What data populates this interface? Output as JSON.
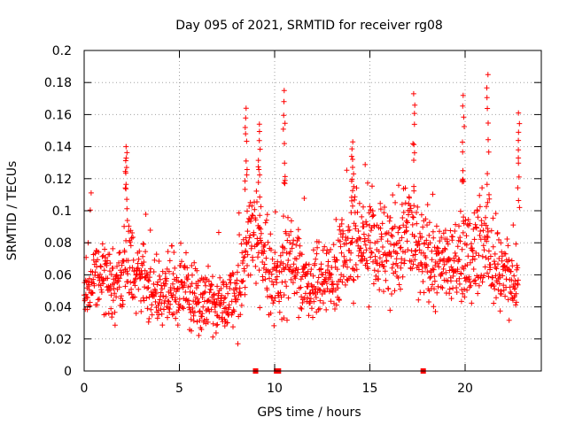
{
  "chart_data": {
    "type": "scatter",
    "title": "Day 095 of 2021, SRMTID for receiver rg08",
    "xlabel": "GPS time / hours",
    "ylabel": "SRMTID / TECUs",
    "xlim": [
      0,
      24
    ],
    "ylim": [
      0,
      0.2
    ],
    "x_ticks": [
      0,
      5,
      10,
      15,
      20
    ],
    "x_tick_labels": [
      "0",
      "5",
      "10",
      "15",
      "20"
    ],
    "y_ticks": [
      0,
      0.02,
      0.04,
      0.06,
      0.08,
      0.1,
      0.12,
      0.14,
      0.16,
      0.18,
      0.2
    ],
    "y_tick_labels": [
      "0",
      "0.02",
      "0.04",
      "0.06",
      "0.08",
      "0.1",
      "0.12",
      "0.14",
      "0.16",
      "0.18",
      "0.2"
    ],
    "grid": true,
    "marker": "+",
    "color": "#ff0000",
    "series": [
      {
        "name": "SRMTID",
        "profile_x": [
          0,
          0.5,
          1,
          1.5,
          2,
          2.2,
          2.5,
          3,
          3.5,
          4,
          4.5,
          5,
          5.5,
          6,
          6.5,
          7,
          7.5,
          8,
          8.3,
          8.6,
          9,
          9.5,
          10,
          10.3,
          10.6,
          11,
          11.5,
          12,
          12.5,
          13,
          13.5,
          14,
          14.5,
          15,
          15.5,
          16,
          16.5,
          17,
          17.5,
          18,
          18.5,
          19,
          19.5,
          20,
          20.5,
          21,
          21.5,
          22,
          22.5,
          22.8
        ],
        "profile_mean": [
          0.05,
          0.055,
          0.06,
          0.052,
          0.06,
          0.07,
          0.065,
          0.058,
          0.05,
          0.048,
          0.05,
          0.052,
          0.048,
          0.045,
          0.045,
          0.042,
          0.04,
          0.045,
          0.06,
          0.08,
          0.085,
          0.07,
          0.055,
          0.06,
          0.07,
          0.065,
          0.055,
          0.05,
          0.055,
          0.06,
          0.07,
          0.08,
          0.078,
          0.08,
          0.07,
          0.075,
          0.08,
          0.085,
          0.075,
          0.07,
          0.068,
          0.07,
          0.068,
          0.075,
          0.075,
          0.08,
          0.065,
          0.06,
          0.055,
          0.06
        ],
        "profile_spread": [
          0.018,
          0.018,
          0.02,
          0.018,
          0.02,
          0.03,
          0.022,
          0.02,
          0.018,
          0.018,
          0.02,
          0.02,
          0.018,
          0.018,
          0.018,
          0.015,
          0.015,
          0.02,
          0.025,
          0.03,
          0.03,
          0.028,
          0.02,
          0.022,
          0.025,
          0.022,
          0.02,
          0.02,
          0.02,
          0.022,
          0.025,
          0.028,
          0.028,
          0.028,
          0.025,
          0.025,
          0.028,
          0.03,
          0.025,
          0.025,
          0.022,
          0.022,
          0.022,
          0.03,
          0.028,
          0.032,
          0.022,
          0.02,
          0.02,
          0.02
        ],
        "peaks": [
          {
            "x": 2.2,
            "y": 0.14
          },
          {
            "x": 8.5,
            "y": 0.164
          },
          {
            "x": 9.2,
            "y": 0.154
          },
          {
            "x": 10.5,
            "y": 0.175
          },
          {
            "x": 14.1,
            "y": 0.143
          },
          {
            "x": 17.3,
            "y": 0.173
          },
          {
            "x": 19.9,
            "y": 0.172
          },
          {
            "x": 21.2,
            "y": 0.185
          },
          {
            "x": 22.8,
            "y": 0.161
          }
        ],
        "zero_points": [
          {
            "x": 9.0,
            "y": 0
          },
          {
            "x": 10.1,
            "y": 0
          },
          {
            "x": 10.2,
            "y": 0
          },
          {
            "x": 17.8,
            "y": 0
          }
        ]
      }
    ]
  }
}
